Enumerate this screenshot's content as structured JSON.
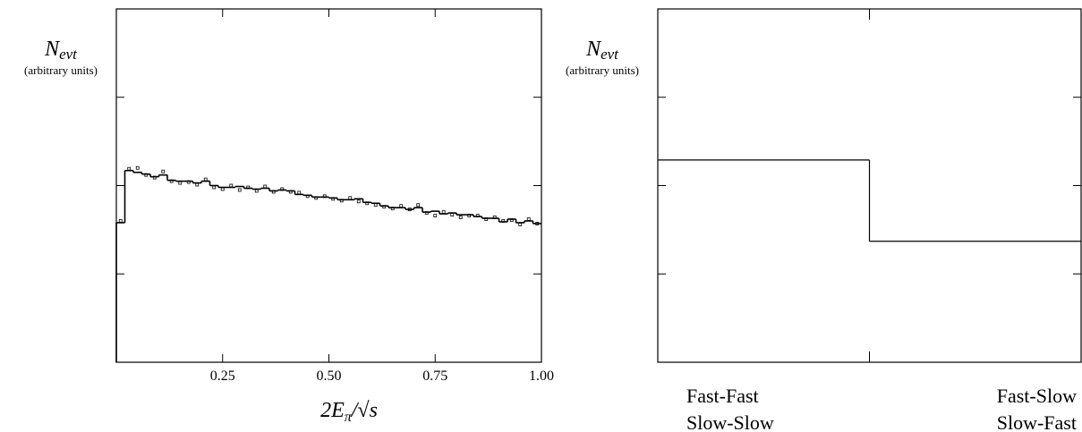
{
  "chart_data": [
    {
      "type": "histogram",
      "ylabel": "N",
      "ylabel_subscript": "evt",
      "ylabel_note": "(arbitrary units)",
      "xlabel": "2E",
      "xlabel_subscript": "π",
      "xlabel_rest": "/√s",
      "xlim": [
        0,
        1
      ],
      "xticks": [
        0.25,
        {
          "value": 0.5,
          "label": "0.50"
        },
        0.75,
        {
          "value": 1,
          "label": "1.00"
        }
      ],
      "ylim": [
        0,
        4
      ],
      "yticks": [
        0,
        1,
        2,
        3,
        4
      ],
      "color": "#000000",
      "bins": [
        0,
        0.02,
        0.04,
        0.06,
        0.08,
        0.1,
        0.12,
        0.14,
        0.16,
        0.18,
        0.2,
        0.22,
        0.24,
        0.26,
        0.28,
        0.3,
        0.32,
        0.34,
        0.36,
        0.38,
        0.4,
        0.42,
        0.44,
        0.46,
        0.48,
        0.5,
        0.52,
        0.54,
        0.56,
        0.58,
        0.6,
        0.62,
        0.64,
        0.66,
        0.68,
        0.7,
        0.72,
        0.74,
        0.76,
        0.78,
        0.8,
        0.82,
        0.84,
        0.86,
        0.88,
        0.9,
        0.92,
        0.94,
        0.96,
        0.98,
        1
      ],
      "values": [
        1.58,
        2.17,
        2.15,
        2.13,
        2.1,
        2.12,
        2.06,
        2.05,
        2.05,
        2.03,
        2.05,
        2.0,
        1.98,
        1.98,
        1.99,
        1.97,
        1.96,
        1.97,
        1.94,
        1.95,
        1.94,
        1.9,
        1.89,
        1.87,
        1.87,
        1.86,
        1.84,
        1.84,
        1.85,
        1.81,
        1.8,
        1.77,
        1.75,
        1.75,
        1.73,
        1.75,
        1.7,
        1.71,
        1.68,
        1.69,
        1.67,
        1.67,
        1.65,
        1.63,
        1.63,
        1.59,
        1.62,
        1.58,
        1.6,
        1.57
      ],
      "points": {
        "x": [
          0.01,
          0.03,
          0.05,
          0.07,
          0.09,
          0.11,
          0.13,
          0.15,
          0.17,
          0.19,
          0.21,
          0.23,
          0.25,
          0.27,
          0.29,
          0.31,
          0.33,
          0.35,
          0.37,
          0.39,
          0.41,
          0.43,
          0.45,
          0.47,
          0.49,
          0.51,
          0.53,
          0.55,
          0.57,
          0.59,
          0.61,
          0.63,
          0.65,
          0.67,
          0.69,
          0.71,
          0.73,
          0.75,
          0.77,
          0.79,
          0.81,
          0.83,
          0.85,
          0.87,
          0.89,
          0.91,
          0.93,
          0.95,
          0.97,
          0.99
        ],
        "values": [
          1.6,
          2.19,
          2.2,
          2.12,
          2.09,
          2.16,
          2.05,
          2.03,
          2.04,
          2.01,
          2.07,
          1.98,
          1.96,
          2.0,
          1.95,
          1.98,
          1.94,
          1.99,
          1.93,
          1.96,
          1.93,
          1.92,
          1.88,
          1.86,
          1.88,
          1.85,
          1.83,
          1.86,
          1.82,
          1.8,
          1.78,
          1.76,
          1.74,
          1.77,
          1.73,
          1.78,
          1.69,
          1.66,
          1.7,
          1.67,
          1.64,
          1.66,
          1.66,
          1.62,
          1.64,
          1.6,
          1.61,
          1.56,
          1.62,
          1.57
        ]
      }
    },
    {
      "type": "step",
      "ylabel": "N",
      "ylabel_subscript": "evt",
      "ylabel_note": "(arbitrary units)",
      "categories": [
        [
          "Fast-Fast",
          "Slow-Slow"
        ],
        [
          "Fast-Slow",
          "Slow-Fast"
        ]
      ],
      "values": [
        2.29,
        1.37
      ],
      "ylim": [
        0,
        4
      ],
      "yticks": [
        0,
        1,
        2,
        3,
        4
      ],
      "color": "#000000"
    }
  ]
}
